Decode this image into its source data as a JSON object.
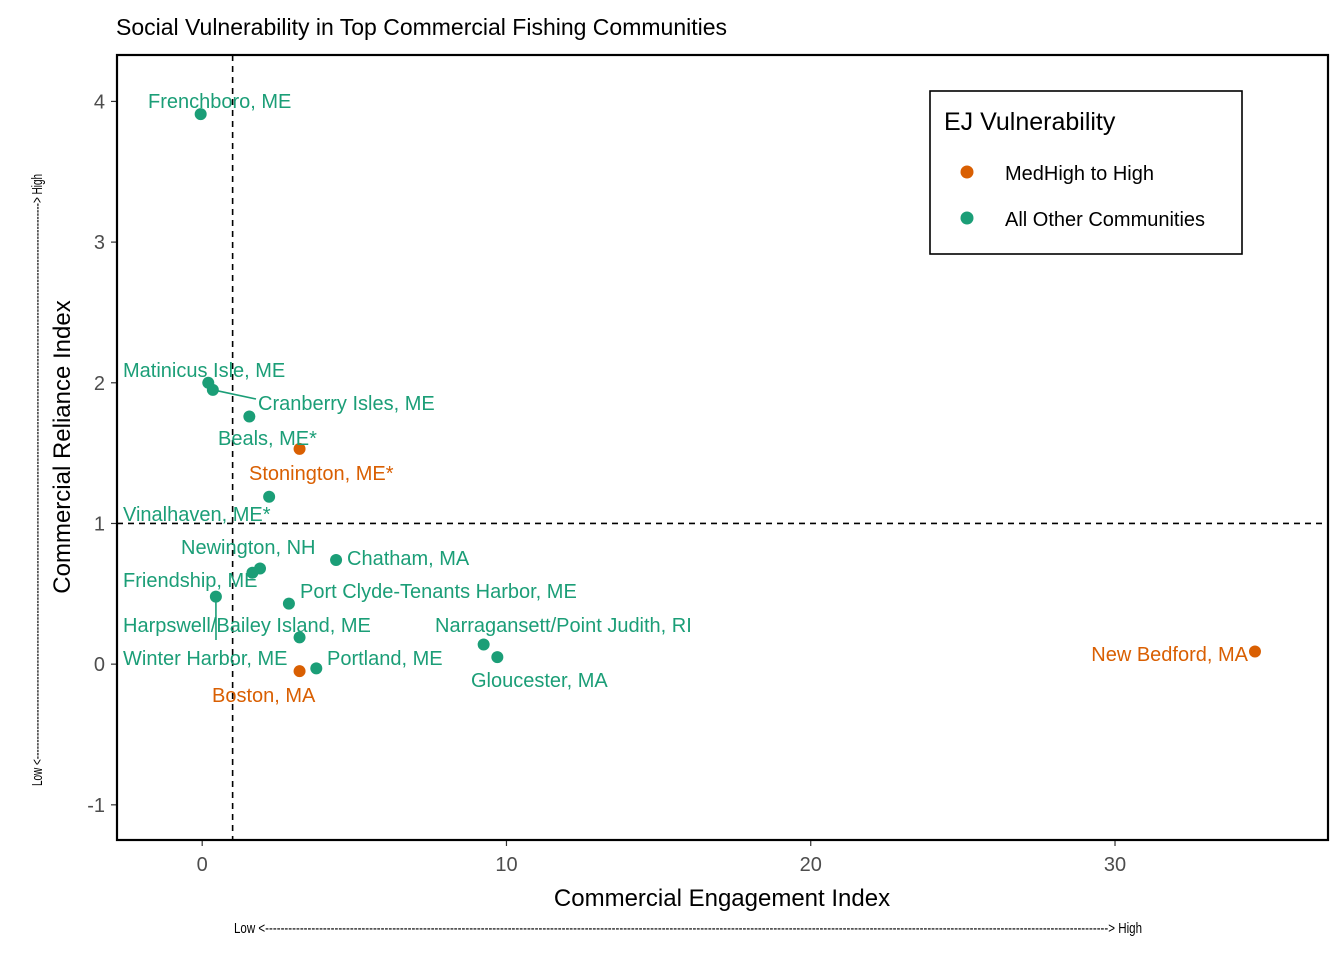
{
  "chart_data": {
    "type": "scatter",
    "title": "Social Vulnerability in Top Commercial Fishing Communities",
    "xlabel": "Commercial Engagement Index",
    "ylabel": "Commercial Reliance Index",
    "x_direction_label": "Low <---------------------------------------------------------------------------------------------------------------------------------------------------------------------------------------------------------------------------> High",
    "y_direction_label": "Low <------------------------------------------------------------------------------------------------------------------------------------------------------------------------> High",
    "xlim": [
      -2.8,
      37
    ],
    "ylim": [
      -1.25,
      4.33
    ],
    "x_ticks": [
      0,
      10,
      20,
      30
    ],
    "x_tick_labels": [
      "0",
      "10",
      "20",
      "30"
    ],
    "y_ticks": [
      -1,
      0,
      1,
      2,
      3,
      4
    ],
    "y_tick_labels": [
      "-1",
      "0",
      "1",
      "2",
      "3",
      "4"
    ],
    "reference_lines": {
      "x": 1,
      "y": 1
    },
    "grid": false,
    "legend": {
      "title": "EJ Vulnerability",
      "placement": "top-right",
      "entries": [
        {
          "label": "MedHigh to High",
          "color": "#d95f02"
        },
        {
          "label": "All Other Communities",
          "color": "#1b9e77"
        }
      ]
    },
    "points": [
      {
        "label": "Frenchboro, ME",
        "x": -0.05,
        "y": 3.91,
        "group": "All Other Communities"
      },
      {
        "label": "Matinicus Isle, ME",
        "x": 0.2,
        "y": 2.0,
        "group": "All Other Communities"
      },
      {
        "label": "Cranberry Isles, ME",
        "x": 0.35,
        "y": 1.95,
        "group": "All Other Communities"
      },
      {
        "label": "Beals, ME*",
        "x": 1.55,
        "y": 1.76,
        "group": "All Other Communities"
      },
      {
        "label": "Stonington, ME*",
        "x": 3.2,
        "y": 1.53,
        "group": "MedHigh to High"
      },
      {
        "label": "Vinalhaven, ME*",
        "x": 2.2,
        "y": 1.19,
        "group": "All Other Communities"
      },
      {
        "label": "Newington, NH",
        "x": 1.9,
        "y": 0.68,
        "group": "All Other Communities"
      },
      {
        "label": "Chatham, MA",
        "x": 4.4,
        "y": 0.74,
        "group": "All Other Communities"
      },
      {
        "label": "Friendship, ME",
        "x": 1.65,
        "y": 0.65,
        "group": "All Other Communities"
      },
      {
        "label": "Port Clyde-Tenants Harbor, ME",
        "x": 2.85,
        "y": 0.43,
        "group": "All Other Communities"
      },
      {
        "label": "Harpswell/Bailey Island, ME",
        "x": 0.45,
        "y": 0.48,
        "group": "All Other Communities"
      },
      {
        "label": "Narragansett/Point Judith, RI",
        "x": 9.25,
        "y": 0.14,
        "group": "All Other Communities"
      },
      {
        "label": "Winter Harbor, ME",
        "x": 3.2,
        "y": 0.19,
        "group": "All Other Communities"
      },
      {
        "label": "Portland, ME",
        "x": 3.75,
        "y": -0.03,
        "group": "All Other Communities"
      },
      {
        "label": "Gloucester, MA",
        "x": 9.7,
        "y": 0.05,
        "group": "All Other Communities"
      },
      {
        "label": "New Bedford, MA",
        "x": 34.6,
        "y": 0.09,
        "group": "MedHigh to High"
      },
      {
        "label": "Boston, MA",
        "x": 3.2,
        "y": -0.05,
        "group": "MedHigh to High"
      }
    ]
  }
}
